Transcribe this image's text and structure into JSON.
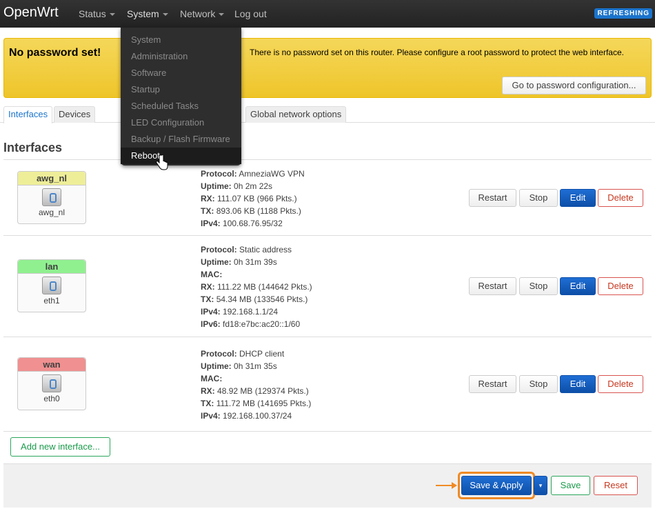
{
  "nav": {
    "brand": "OpenWrt",
    "items": [
      "Status",
      "System",
      "Network",
      "Log out"
    ],
    "badge": "REFRESHING"
  },
  "alert": {
    "title": "No password set!",
    "text": "There is no password set on this router. Please configure a root password to protect the web interface.",
    "button": "Go to password configuration..."
  },
  "tabs": [
    "Interfaces",
    "Devices",
    "Global network options"
  ],
  "section_title": "Interfaces",
  "system_menu": [
    "System",
    "Administration",
    "Software",
    "Startup",
    "Scheduled Tasks",
    "LED Configuration",
    "Backup / Flash Firmware",
    "Reboot"
  ],
  "interfaces": [
    {
      "name": "awg_nl",
      "device": "awg_nl",
      "color": "#eeee99",
      "details": [
        [
          "Protocol:",
          "AmneziaWG VPN"
        ],
        [
          "Uptime:",
          "0h 2m 22s"
        ],
        [
          "RX:",
          "111.07 KB (966 Pkts.)"
        ],
        [
          "TX:",
          "893.06 KB (1188 Pkts.)"
        ],
        [
          "IPv4:",
          "100.68.76.95/32"
        ]
      ]
    },
    {
      "name": "lan",
      "device": "eth1",
      "color": "#90f090",
      "details": [
        [
          "Protocol:",
          "Static address"
        ],
        [
          "Uptime:",
          "0h 31m 39s"
        ],
        [
          "MAC:",
          ""
        ],
        [
          "RX:",
          "111.22 MB (144642 Pkts.)"
        ],
        [
          "TX:",
          "54.34 MB (133546 Pkts.)"
        ],
        [
          "IPv4:",
          "192.168.1.1/24"
        ],
        [
          "IPv6:",
          "fd18:e7bc:ac20::1/60"
        ]
      ]
    },
    {
      "name": "wan",
      "device": "eth0",
      "color": "#f09090",
      "details": [
        [
          "Protocol:",
          "DHCP client"
        ],
        [
          "Uptime:",
          "0h 31m 35s"
        ],
        [
          "MAC:",
          ""
        ],
        [
          "RX:",
          "48.92 MB (129374 Pkts.)"
        ],
        [
          "TX:",
          "111.72 MB (141695 Pkts.)"
        ],
        [
          "IPv4:",
          "192.168.100.37/24"
        ]
      ]
    }
  ],
  "row_buttons": {
    "restart": "Restart",
    "stop": "Stop",
    "edit": "Edit",
    "delete": "Delete"
  },
  "add_interface": "Add new interface...",
  "footer": {
    "save_apply": "Save & Apply",
    "dropdown": "▾",
    "save": "Save",
    "reset": "Reset"
  },
  "highlight_color": "#f08a24"
}
